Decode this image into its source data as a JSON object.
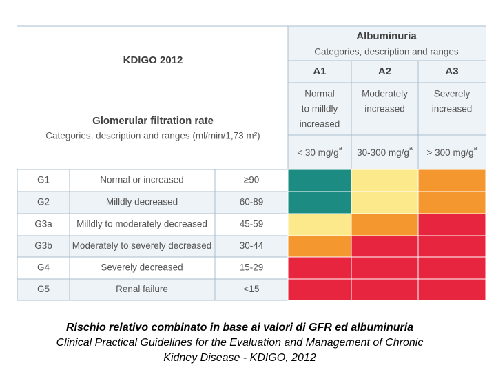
{
  "header": {
    "title": "KDIGO 2012",
    "gfr_title": "Glomerular filtration rate",
    "gfr_subtitle": "Categories, description and ranges (ml/min/1,73 m²)",
    "alb_title": "Albuminuria",
    "alb_subtitle": "Categories, description and ranges"
  },
  "albuminuria": [
    {
      "code": "A1",
      "description": [
        "Normal",
        "to milldly",
        "increased"
      ],
      "range": "< 30 mg/g",
      "sup": "a"
    },
    {
      "code": "A2",
      "description": [
        "Moderately",
        "increased"
      ],
      "range": "30-300 mg/g",
      "sup": "a"
    },
    {
      "code": "A3",
      "description": [
        "Severely",
        "increased"
      ],
      "range": "> 300 mg/g",
      "sup": "a"
    }
  ],
  "gfr": [
    {
      "code": "G1",
      "description": "Normal or increased",
      "range": "≥90",
      "risk": [
        "#1c8b82",
        "#fbe98c",
        "#f4972f"
      ]
    },
    {
      "code": "G2",
      "description": "Milldly decreased",
      "range": "60-89",
      "risk": [
        "#1c8b82",
        "#fbe98c",
        "#f4972f"
      ]
    },
    {
      "code": "G3a",
      "description": "Milldly to moderately decreased",
      "range": "45-59",
      "risk": [
        "#fbe98c",
        "#f4972f",
        "#e8253f"
      ]
    },
    {
      "code": "G3b",
      "description": "Moderately to severely decreased",
      "range": "30-44",
      "risk": [
        "#f4972f",
        "#e8253f",
        "#e8253f"
      ]
    },
    {
      "code": "G4",
      "description": "Severely decreased",
      "range": "15-29",
      "risk": [
        "#e8253f",
        "#e8253f",
        "#e8253f"
      ]
    },
    {
      "code": "G5",
      "description": "Renal failure",
      "range": "<15",
      "risk": [
        "#e8253f",
        "#e8253f",
        "#e8253f"
      ]
    }
  ],
  "caption": [
    "Rischio relativo combinato in base ai valori di GFR ed albuminuria",
    "Clinical Practical Guidelines for the Evaluation and Management of Chronic",
    "Kidney Disease - KDIGO, 2012"
  ]
}
